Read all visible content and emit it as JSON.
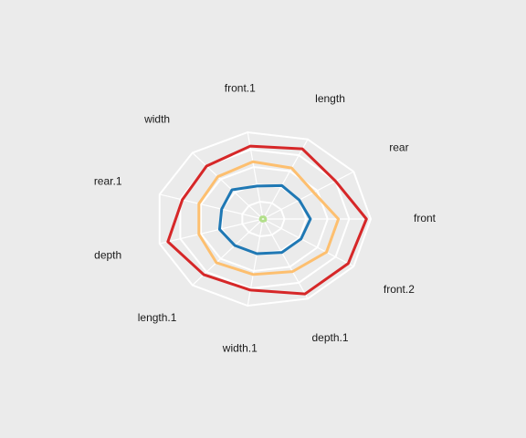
{
  "chart_data": {
    "type": "radar",
    "title": "",
    "axes": [
      "front",
      "front.2",
      "depth.1",
      "width.1",
      "length.1",
      "depth",
      "rear.1",
      "width",
      "front.1",
      "length",
      "rear"
    ],
    "grid": true,
    "legend": "none",
    "rlim": [
      0,
      5
    ],
    "grid_levels": [
      1,
      2,
      3,
      4,
      5
    ],
    "series": [
      {
        "color": "#d62728",
        "values": [
          4.8,
          4.7,
          4.7,
          4.1,
          4.2,
          4.6,
          3.9,
          4.0,
          4.2,
          4.4,
          4.0
        ]
      },
      {
        "color": "#fdbf6f",
        "values": [
          3.5,
          3.5,
          3.3,
          3.2,
          3.3,
          3.1,
          3.1,
          3.2,
          3.3,
          3.2,
          2.8
        ]
      },
      {
        "color": "#1f78b4",
        "values": [
          2.2,
          2.1,
          2.1,
          2.0,
          2.0,
          2.1,
          2.0,
          2.2,
          1.9,
          2.1,
          2.0
        ]
      },
      {
        "color": "#b2df8a",
        "values": [
          0.12,
          0.14,
          0.12,
          0.13,
          0.12,
          0.13,
          0.12,
          0.13,
          0.12,
          0.13,
          0.12
        ]
      }
    ]
  }
}
